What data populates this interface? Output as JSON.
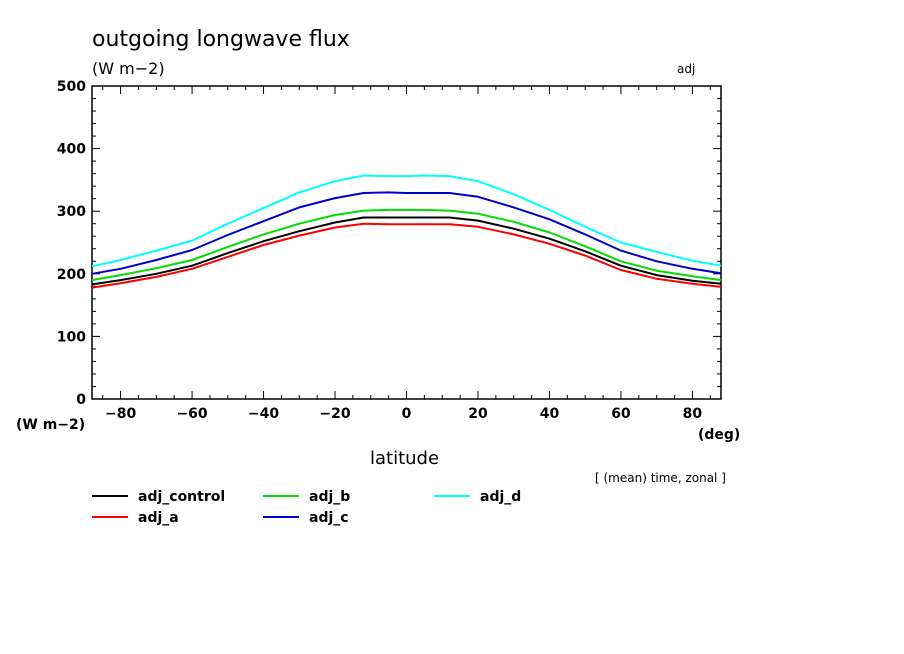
{
  "chart_data": {
    "type": "line",
    "title": "outgoing longwave flux",
    "subtitle": "(W m−2)",
    "tag": "adj",
    "ylabel_units": "(W m−2)",
    "xlabel": "latitude",
    "xlabel_units": "(deg)",
    "note": "[ (mean) time, zonal ]",
    "xlim": [
      -88,
      88
    ],
    "ylim": [
      0,
      500
    ],
    "xticks": [
      -80,
      -60,
      -40,
      -20,
      0,
      20,
      40,
      60,
      80
    ],
    "xtick_labels": [
      "−80",
      "−60",
      "−40",
      "−20",
      "0",
      "20",
      "40",
      "60",
      "80"
    ],
    "yticks": [
      0,
      100,
      200,
      300,
      400,
      500
    ],
    "ytick_labels": [
      "0",
      "100",
      "200",
      "300",
      "400",
      "500"
    ],
    "legend_position": "bottom",
    "x": [
      -88,
      -80,
      -70,
      -60,
      -50,
      -40,
      -30,
      -20,
      -12,
      -5,
      0,
      5,
      12,
      20,
      30,
      40,
      50,
      60,
      70,
      80,
      88
    ],
    "series": [
      {
        "name": "adj_control",
        "color": "#000000",
        "values": [
          183,
          190,
          200,
          213,
          233,
          252,
          268,
          282,
          290,
          290,
          290,
          290,
          290,
          285,
          272,
          256,
          236,
          213,
          198,
          189,
          184
        ]
      },
      {
        "name": "adj_a",
        "color": "#ff0000",
        "values": [
          178,
          185,
          195,
          208,
          227,
          246,
          261,
          274,
          280,
          279,
          279,
          279,
          279,
          275,
          263,
          248,
          229,
          206,
          192,
          184,
          179
        ]
      },
      {
        "name": "adj_b",
        "color": "#00dd00",
        "values": [
          190,
          198,
          209,
          222,
          243,
          263,
          280,
          294,
          301,
          302,
          302,
          302,
          301,
          296,
          283,
          266,
          244,
          220,
          205,
          196,
          190
        ]
      },
      {
        "name": "adj_c",
        "color": "#0000cc",
        "values": [
          200,
          208,
          222,
          238,
          262,
          284,
          306,
          321,
          329,
          330,
          329,
          329,
          329,
          323,
          306,
          287,
          263,
          237,
          220,
          208,
          201
        ]
      },
      {
        "name": "adj_d",
        "color": "#00ffff",
        "values": [
          212,
          222,
          237,
          253,
          280,
          305,
          330,
          348,
          357,
          356,
          356,
          357,
          356,
          348,
          327,
          302,
          275,
          250,
          235,
          221,
          213
        ]
      }
    ]
  }
}
